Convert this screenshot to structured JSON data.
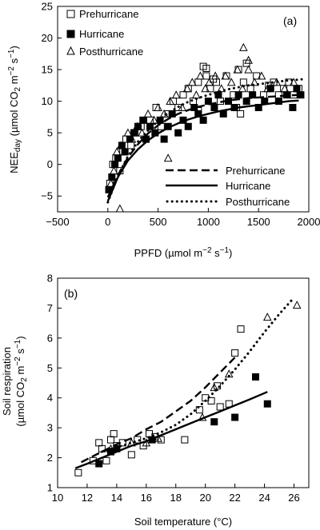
{
  "chart_data": [
    {
      "type": "scatter",
      "panel_label": "(a)",
      "xlim": [
        -500,
        2000
      ],
      "ylim": [
        -7.5,
        25
      ],
      "xticks": [
        -500,
        0,
        500,
        1000,
        1500,
        2000
      ],
      "yticks": [
        -5,
        0,
        5,
        10,
        15,
        20,
        25
      ],
      "grid": false,
      "marker_legend": {
        "position": "top-left",
        "entries": [
          {
            "label": "Prehurricane",
            "marker": "open-square"
          },
          {
            "label": "Hurricane",
            "marker": "filled-square"
          },
          {
            "label": "Posthurricane",
            "marker": "open-triangle"
          }
        ]
      },
      "line_legend": {
        "position": "bottom-right",
        "entries": [
          {
            "label": "Prehurricane",
            "style": "dashed"
          },
          {
            "label": "Hurricane",
            "style": "solid"
          },
          {
            "label": "Posthurricane",
            "style": "dotted"
          }
        ]
      },
      "series": [
        {
          "name": "Prehurricane",
          "marker": "open-square",
          "x": [
            20,
            50,
            80,
            120,
            150,
            180,
            230,
            270,
            330,
            380,
            420,
            480,
            530,
            600,
            650,
            700,
            750,
            800,
            850,
            900,
            950,
            980,
            1020,
            1080,
            1120,
            1180,
            1250,
            1300,
            1350,
            1380,
            1420,
            1480,
            1550,
            1600,
            1650,
            1700,
            1750,
            1800,
            1850,
            1900,
            980,
            1050,
            1280,
            1320,
            900
          ],
          "y": [
            -3,
            0,
            1,
            -1,
            2,
            4,
            3,
            5,
            6,
            4,
            7,
            9,
            6,
            8,
            10,
            9,
            11,
            12,
            10,
            13,
            15.5,
            14,
            12,
            13,
            10,
            14,
            11,
            15,
            13,
            16,
            12,
            14,
            11,
            12.5,
            13,
            11,
            12,
            13,
            11,
            12,
            15.2,
            13.5,
            9,
            8,
            8.5
          ]
        },
        {
          "name": "Hurricane",
          "marker": "filled-square",
          "x": [
            10,
            40,
            70,
            100,
            140,
            170,
            220,
            260,
            300,
            350,
            380,
            420,
            470,
            520,
            560,
            600,
            640,
            700,
            750,
            800,
            860,
            900,
            950,
            1000,
            1060,
            1100,
            1150,
            1200,
            1260,
            1300,
            1380,
            1440,
            1500,
            1560,
            1620,
            1700,
            1780,
            1840,
            1880,
            1920
          ],
          "y": [
            -4,
            -2,
            0,
            1,
            3,
            2,
            4,
            5,
            6,
            7,
            4,
            6,
            5,
            7,
            4,
            6,
            8,
            5,
            7,
            6,
            9,
            8,
            7,
            10,
            9,
            11,
            8,
            10,
            9,
            11,
            10,
            11,
            9,
            10,
            12,
            10,
            11,
            9,
            12,
            11
          ]
        },
        {
          "name": "Posthurricane",
          "marker": "open-triangle",
          "x": [
            30,
            60,
            90,
            130,
            200,
            240,
            290,
            340,
            400,
            460,
            500,
            560,
            620,
            680,
            740,
            790,
            840,
            880,
            920,
            970,
            1010,
            1070,
            1130,
            1170,
            1230,
            1290,
            1340,
            1400,
            1460,
            1530,
            1590,
            1680,
            1760,
            1850,
            1350,
            1400,
            600,
            120
          ],
          "y": [
            -3,
            -1,
            2,
            3,
            5,
            4,
            6,
            5,
            8,
            7,
            9,
            8,
            10,
            11,
            9,
            12,
            13,
            11,
            14,
            12,
            13,
            14,
            12,
            14,
            13,
            15,
            12,
            15,
            13,
            14,
            12,
            13,
            12,
            13,
            18.5,
            16.5,
            1,
            -7
          ]
        },
        {
          "name": "Prehurricane",
          "style": "dashed",
          "fit": true,
          "x": [
            0,
            100,
            200,
            300,
            400,
            500,
            600,
            700,
            800,
            900,
            1000,
            1100,
            1200,
            1300,
            1400,
            1500,
            1600,
            1700,
            1800,
            1900
          ],
          "y": [
            -5.2,
            -1.7,
            1.1,
            3.2,
            4.9,
            6.2,
            7.2,
            8.0,
            8.6,
            9.1,
            9.5,
            9.8,
            10.1,
            10.3,
            10.5,
            10.6,
            10.7,
            10.8,
            10.9,
            11.0
          ]
        },
        {
          "name": "Hurricane",
          "style": "solid",
          "fit": true,
          "x": [
            0,
            100,
            200,
            300,
            400,
            500,
            600,
            700,
            800,
            900,
            1000,
            1100,
            1200,
            1300,
            1400,
            1500,
            1600,
            1700,
            1800,
            1900
          ],
          "y": [
            -5.8,
            -2.0,
            0.6,
            2.4,
            3.8,
            4.9,
            5.8,
            6.5,
            7.1,
            7.6,
            8.0,
            8.4,
            8.7,
            9.0,
            9.2,
            9.4,
            9.6,
            9.8,
            10.0,
            10.1
          ]
        },
        {
          "name": "Posthurricane",
          "style": "dotted",
          "fit": true,
          "x": [
            0,
            100,
            200,
            300,
            400,
            500,
            600,
            700,
            800,
            900,
            1000,
            1100,
            1200,
            1300,
            1400,
            1500,
            1600,
            1700,
            1800,
            1900,
            1950
          ],
          "y": [
            -6.0,
            -1.8,
            1.3,
            3.6,
            5.4,
            6.9,
            8.1,
            9.1,
            9.9,
            10.5,
            11.0,
            11.5,
            11.9,
            12.2,
            12.5,
            12.7,
            12.9,
            13.1,
            13.3,
            13.4,
            13.5
          ]
        }
      ]
    },
    {
      "type": "scatter",
      "panel_label": "(b)",
      "xlim": [
        10,
        27
      ],
      "ylim": [
        1,
        8
      ],
      "xticks": [
        10,
        12,
        14,
        16,
        18,
        20,
        22,
        24,
        26
      ],
      "yticks": [
        1,
        2,
        3,
        4,
        5,
        6,
        7,
        8
      ],
      "grid": false,
      "series": [
        {
          "name": "Prehurricane",
          "marker": "open-square",
          "x": [
            11.4,
            12.4,
            12.8,
            13.0,
            13.3,
            13.6,
            13.8,
            14.0,
            14.4,
            15.0,
            15.4,
            15.8,
            16.2,
            16.6,
            17.0,
            18.6,
            19.6,
            20.0,
            20.4,
            20.8,
            21.0,
            21.6,
            22.0,
            22.4
          ],
          "y": [
            1.5,
            1.9,
            2.5,
            2.3,
            1.9,
            2.6,
            2.8,
            2.4,
            2.5,
            2.1,
            2.6,
            2.4,
            2.8,
            2.7,
            2.6,
            2.6,
            3.6,
            4.0,
            3.9,
            4.4,
            3.7,
            3.8,
            5.5,
            6.3
          ]
        },
        {
          "name": "Hurricane",
          "marker": "filled-square",
          "x": [
            12.8,
            13.6,
            14.0,
            16.4,
            20.6,
            22.0,
            23.4,
            24.2
          ],
          "y": [
            1.8,
            2.2,
            2.3,
            2.6,
            3.2,
            3.35,
            4.7,
            3.8
          ]
        },
        {
          "name": "Posthurricane",
          "marker": "open-triangle",
          "x": [
            13.6,
            15.0,
            16.0,
            16.8,
            19.8,
            20.6,
            21.6,
            24.2,
            26.2
          ],
          "y": [
            2.3,
            2.5,
            2.5,
            2.65,
            3.35,
            4.35,
            4.8,
            6.7,
            7.1
          ]
        },
        {
          "name": "Prehurricane",
          "style": "dashed",
          "fit": true,
          "x": [
            11.6,
            12,
            13,
            14,
            15,
            16,
            17,
            18,
            19,
            20,
            21,
            22
          ],
          "y": [
            1.85,
            1.95,
            2.2,
            2.45,
            2.65,
            2.95,
            3.2,
            3.55,
            3.9,
            4.35,
            4.85,
            5.35
          ]
        },
        {
          "name": "Hurricane",
          "style": "solid",
          "fit": true,
          "x": [
            11.2,
            12,
            13,
            14,
            15,
            16,
            17,
            18,
            19,
            20,
            21,
            22,
            23,
            24.2
          ],
          "y": [
            1.65,
            1.8,
            2.0,
            2.2,
            2.4,
            2.55,
            2.75,
            2.95,
            3.15,
            3.35,
            3.55,
            3.75,
            3.95,
            4.2
          ]
        },
        {
          "name": "Posthurricane",
          "style": "dotted",
          "fit": true,
          "x": [
            13,
            14,
            15,
            16,
            17,
            18,
            19,
            20,
            21,
            22,
            23,
            24,
            25,
            26
          ],
          "y": [
            2.2,
            2.35,
            2.5,
            2.65,
            2.85,
            3.1,
            3.45,
            3.9,
            4.4,
            4.95,
            5.55,
            6.2,
            6.8,
            7.35
          ]
        }
      ]
    }
  ]
}
